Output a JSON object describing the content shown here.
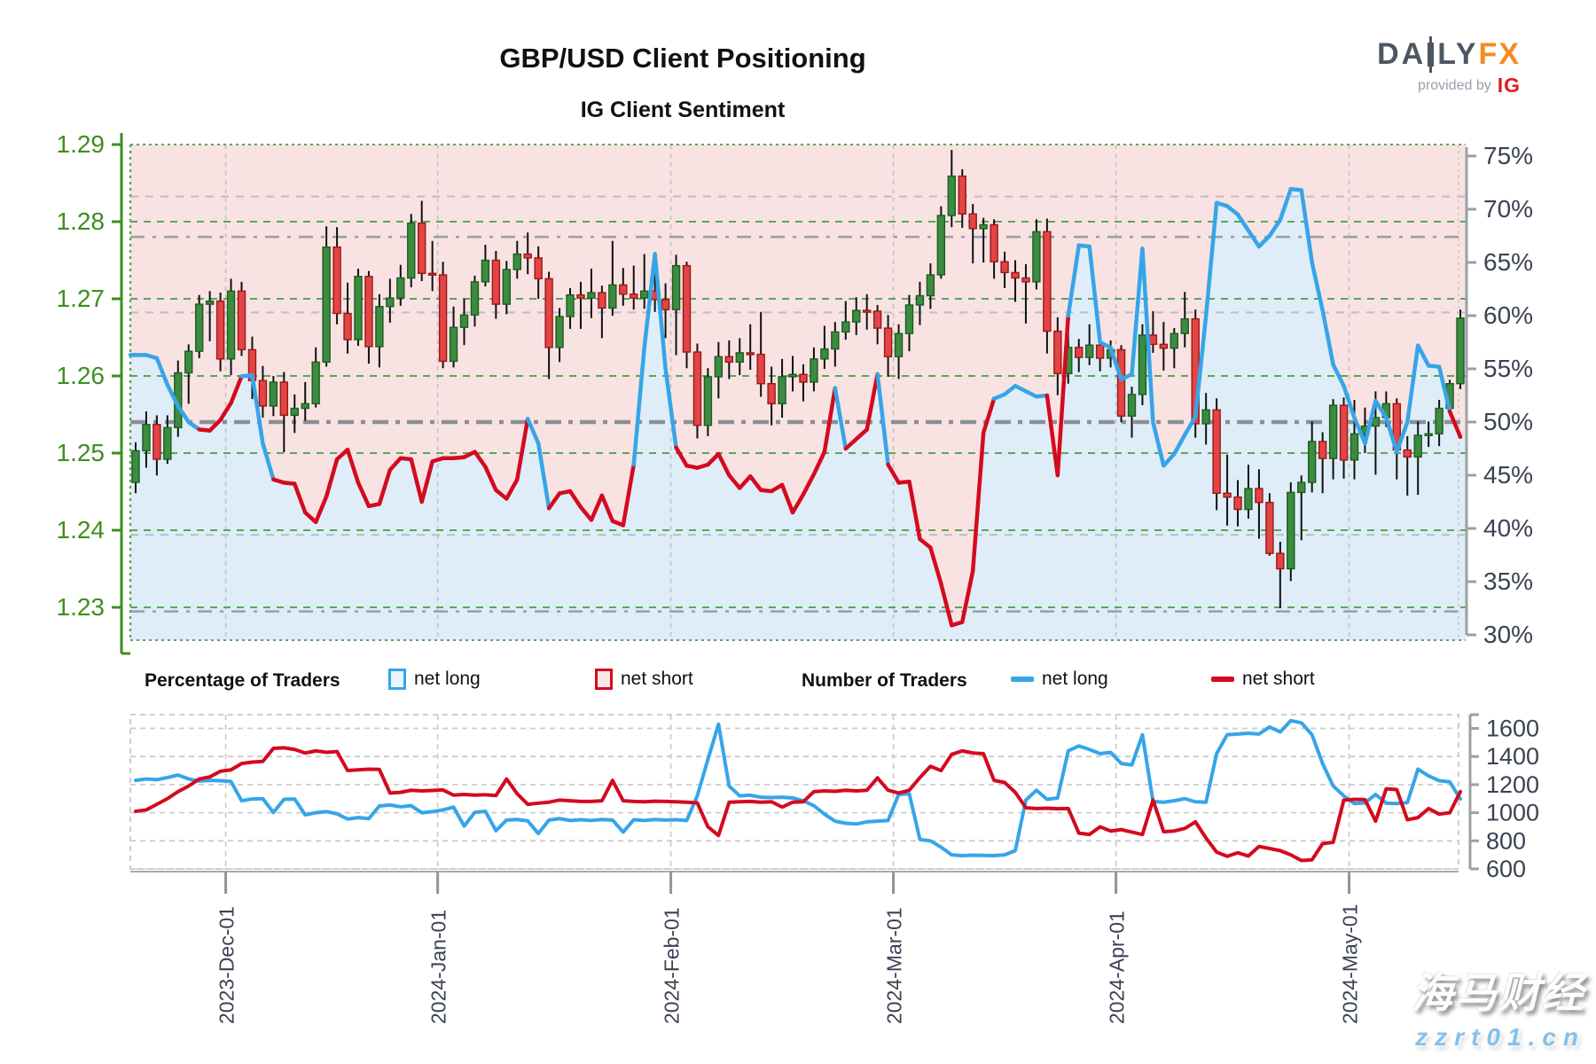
{
  "header": {
    "title": "GBP/USD Client Positioning",
    "subtitle": "IG Client Sentiment"
  },
  "logo": {
    "part1": "DA",
    "part2": "LY",
    "part3": "FX",
    "provided": "provided by",
    "ig": "IG"
  },
  "legend": {
    "pct_title": "Percentage of Traders",
    "pct_long": "net long",
    "pct_short": "net short",
    "num_title": "Number of Traders",
    "num_long": "net long",
    "num_short": "net short"
  },
  "watermark": {
    "line1": "海马财经",
    "line2": "zzrt01.cn"
  },
  "colors": {
    "net_long_blue": "#36a5e8",
    "net_short_red": "#d40a1f",
    "fill_pink": "#f9e2e2",
    "fill_blue": "#deedf8",
    "candle_green": "#3d8b40",
    "candle_green_edge": "#1b5e20",
    "candle_red": "#e24545",
    "candle_red_edge": "#9e1616",
    "axis_green": "#3e8e1e",
    "grid_green": "#5aa755",
    "axis_slate": "#3b4252",
    "grid_gray": "#b9bec6",
    "ref_gray": "#8a8f98"
  },
  "chart_data": {
    "type": "candlestick+line",
    "title": "GBP/USD Client Positioning",
    "subtitle": "IG Client Sentiment",
    "x_range": [
      "2023-Nov-20",
      "2024-May-15"
    ],
    "n_points": 126,
    "month_ticks": {
      "indices": [
        9,
        29,
        51,
        72,
        93,
        115
      ],
      "labels": [
        "2023-Dec-01",
        "2024-Jan-01",
        "2024-Feb-01",
        "2024-Mar-01",
        "2024-Apr-01",
        "2024-May-01"
      ]
    },
    "price_axis": {
      "min": 1.23,
      "max": 1.29,
      "tick_labels": [
        "1.29",
        "1.28",
        "1.27",
        "1.26",
        "1.25",
        "1.24",
        "1.23"
      ],
      "tick_values": [
        1.29,
        1.28,
        1.27,
        1.26,
        1.25,
        1.24,
        1.23
      ]
    },
    "pct_axis": {
      "min": 30,
      "max": 75,
      "tick_labels": [
        "75%",
        "70%",
        "65%",
        "60%",
        "55%",
        "50%",
        "45%",
        "40%",
        "35%",
        "30%"
      ],
      "tick_values": [
        75,
        70,
        65,
        60,
        55,
        50,
        45,
        40,
        35,
        30
      ]
    },
    "count_axis": {
      "min": 600,
      "max": 1600,
      "tick_labels": [
        "1600",
        "1400",
        "1200",
        "1000",
        "800",
        "600"
      ],
      "tick_values": [
        1600,
        1400,
        1200,
        1000,
        800,
        600
      ]
    },
    "reference_lines_pct": [
      {
        "value": 71.2,
        "style": "dash-light"
      },
      {
        "value": 67.4,
        "style": "dashdot-med"
      },
      {
        "value": 60.3,
        "style": "dash-light"
      },
      {
        "value": 50.0,
        "style": "dashdot-bold"
      },
      {
        "value": 39.4,
        "style": "dash-light"
      },
      {
        "value": 32.2,
        "style": "dashdot-med"
      }
    ],
    "candles": [
      [
        1.2462,
        1.2514,
        1.2448,
        1.2503
      ],
      [
        1.2503,
        1.2554,
        1.2481,
        1.2537
      ],
      [
        1.2537,
        1.2549,
        1.2471,
        1.2492
      ],
      [
        1.2492,
        1.2549,
        1.2486,
        1.2533
      ],
      [
        1.2533,
        1.262,
        1.2521,
        1.2604
      ],
      [
        1.2604,
        1.2641,
        1.2564,
        1.2632
      ],
      [
        1.2632,
        1.2705,
        1.2623,
        1.2693
      ],
      [
        1.2693,
        1.271,
        1.2645,
        1.2697
      ],
      [
        1.2697,
        1.2708,
        1.2606,
        1.2622
      ],
      [
        1.2622,
        1.2726,
        1.2601,
        1.271
      ],
      [
        1.271,
        1.2722,
        1.2626,
        1.2634
      ],
      [
        1.2634,
        1.2651,
        1.257,
        1.2594
      ],
      [
        1.2594,
        1.2613,
        1.2546,
        1.2561
      ],
      [
        1.2561,
        1.26,
        1.2548,
        1.2592
      ],
      [
        1.2592,
        1.2605,
        1.2501,
        1.2549
      ],
      [
        1.2549,
        1.2576,
        1.2526,
        1.2558
      ],
      [
        1.2558,
        1.2592,
        1.2542,
        1.2564
      ],
      [
        1.2564,
        1.2637,
        1.2559,
        1.2618
      ],
      [
        1.2618,
        1.2794,
        1.2612,
        1.2767
      ],
      [
        1.2767,
        1.2793,
        1.2667,
        1.2681
      ],
      [
        1.2681,
        1.2721,
        1.2629,
        1.2647
      ],
      [
        1.2647,
        1.2739,
        1.2639,
        1.2729
      ],
      [
        1.2729,
        1.2736,
        1.2616,
        1.2638
      ],
      [
        1.2638,
        1.2706,
        1.2611,
        1.269
      ],
      [
        1.269,
        1.2726,
        1.2669,
        1.2701
      ],
      [
        1.2701,
        1.2744,
        1.2691,
        1.2727
      ],
      [
        1.2727,
        1.281,
        1.2715,
        1.2798
      ],
      [
        1.2798,
        1.2827,
        1.2723,
        1.2733
      ],
      [
        1.2733,
        1.2775,
        1.271,
        1.2731
      ],
      [
        1.2731,
        1.2748,
        1.261,
        1.2619
      ],
      [
        1.2619,
        1.269,
        1.2611,
        1.2663
      ],
      [
        1.2663,
        1.27,
        1.264,
        1.2679
      ],
      [
        1.2679,
        1.273,
        1.2664,
        1.2722
      ],
      [
        1.2722,
        1.277,
        1.2716,
        1.275
      ],
      [
        1.275,
        1.2762,
        1.2674,
        1.2693
      ],
      [
        1.2693,
        1.2749,
        1.268,
        1.2738
      ],
      [
        1.2738,
        1.2775,
        1.2726,
        1.2758
      ],
      [
        1.2758,
        1.2786,
        1.2732,
        1.2753
      ],
      [
        1.2753,
        1.2768,
        1.27,
        1.2726
      ],
      [
        1.2726,
        1.2735,
        1.2596,
        1.2637
      ],
      [
        1.2637,
        1.2688,
        1.2618,
        1.2677
      ],
      [
        1.2677,
        1.2714,
        1.2661,
        1.2705
      ],
      [
        1.2705,
        1.2722,
        1.2661,
        1.2701
      ],
      [
        1.2701,
        1.2739,
        1.2675,
        1.2708
      ],
      [
        1.2708,
        1.2717,
        1.2649,
        1.2688
      ],
      [
        1.2688,
        1.2775,
        1.2678,
        1.2718
      ],
      [
        1.2718,
        1.274,
        1.2691,
        1.2706
      ],
      [
        1.2706,
        1.2743,
        1.2686,
        1.2701
      ],
      [
        1.2701,
        1.2758,
        1.2687,
        1.271
      ],
      [
        1.271,
        1.2749,
        1.2683,
        1.2699
      ],
      [
        1.2699,
        1.272,
        1.2649,
        1.2686
      ],
      [
        1.2686,
        1.2757,
        1.2627,
        1.2743
      ],
      [
        1.2743,
        1.2748,
        1.261,
        1.2631
      ],
      [
        1.2631,
        1.2642,
        1.2519,
        1.2536
      ],
      [
        1.2536,
        1.261,
        1.2522,
        1.2599
      ],
      [
        1.2599,
        1.2644,
        1.2571,
        1.2625
      ],
      [
        1.2625,
        1.2646,
        1.2596,
        1.2618
      ],
      [
        1.2618,
        1.2649,
        1.2601,
        1.263
      ],
      [
        1.263,
        1.2667,
        1.2608,
        1.2628
      ],
      [
        1.2628,
        1.2683,
        1.2573,
        1.259
      ],
      [
        1.259,
        1.2612,
        1.2536,
        1.2564
      ],
      [
        1.2564,
        1.2622,
        1.2546,
        1.2599
      ],
      [
        1.2599,
        1.2626,
        1.258,
        1.2602
      ],
      [
        1.2602,
        1.2615,
        1.2567,
        1.2592
      ],
      [
        1.2592,
        1.2637,
        1.258,
        1.2622
      ],
      [
        1.2622,
        1.2665,
        1.2609,
        1.2635
      ],
      [
        1.2635,
        1.267,
        1.2612,
        1.2657
      ],
      [
        1.2657,
        1.2697,
        1.2647,
        1.267
      ],
      [
        1.267,
        1.2702,
        1.2653,
        1.2685
      ],
      [
        1.2685,
        1.2706,
        1.266,
        1.2684
      ],
      [
        1.2684,
        1.2692,
        1.2641,
        1.2662
      ],
      [
        1.2662,
        1.2679,
        1.2599,
        1.2625
      ],
      [
        1.2625,
        1.2667,
        1.2596,
        1.2655
      ],
      [
        1.2655,
        1.2705,
        1.2632,
        1.2692
      ],
      [
        1.2692,
        1.2722,
        1.2666,
        1.2704
      ],
      [
        1.2704,
        1.2746,
        1.2687,
        1.2731
      ],
      [
        1.2731,
        1.282,
        1.2726,
        1.2808
      ],
      [
        1.2808,
        1.2893,
        1.2793,
        1.2859
      ],
      [
        1.2859,
        1.2868,
        1.2792,
        1.281
      ],
      [
        1.281,
        1.2823,
        1.2746,
        1.2791
      ],
      [
        1.2791,
        1.2805,
        1.2747,
        1.2796
      ],
      [
        1.2796,
        1.2803,
        1.2726,
        1.2748
      ],
      [
        1.2748,
        1.2761,
        1.2714,
        1.2734
      ],
      [
        1.2734,
        1.275,
        1.2696,
        1.2727
      ],
      [
        1.2727,
        1.2745,
        1.2668,
        1.2722
      ],
      [
        1.2722,
        1.2803,
        1.2712,
        1.2787
      ],
      [
        1.2787,
        1.2804,
        1.2629,
        1.2658
      ],
      [
        1.2658,
        1.2676,
        1.2575,
        1.2603
      ],
      [
        1.2603,
        1.2654,
        1.259,
        1.2637
      ],
      [
        1.2637,
        1.2648,
        1.2605,
        1.2624
      ],
      [
        1.2624,
        1.2667,
        1.2614,
        1.264
      ],
      [
        1.264,
        1.2652,
        1.2606,
        1.2623
      ],
      [
        1.2623,
        1.2646,
        1.2611,
        1.2634
      ],
      [
        1.2634,
        1.264,
        1.254,
        1.2548
      ],
      [
        1.2548,
        1.2586,
        1.252,
        1.2576
      ],
      [
        1.2576,
        1.2667,
        1.2562,
        1.2653
      ],
      [
        1.2653,
        1.2684,
        1.263,
        1.2641
      ],
      [
        1.2641,
        1.267,
        1.2607,
        1.2636
      ],
      [
        1.2636,
        1.2662,
        1.261,
        1.2655
      ],
      [
        1.2655,
        1.2709,
        1.2637,
        1.2674
      ],
      [
        1.2674,
        1.2686,
        1.252,
        1.2538
      ],
      [
        1.2538,
        1.2578,
        1.2511,
        1.2556
      ],
      [
        1.2556,
        1.2571,
        1.2426,
        1.2448
      ],
      [
        1.2448,
        1.2498,
        1.2406,
        1.2443
      ],
      [
        1.2443,
        1.2465,
        1.2405,
        1.2427
      ],
      [
        1.2427,
        1.2485,
        1.2415,
        1.2454
      ],
      [
        1.2454,
        1.2479,
        1.2389,
        1.2436
      ],
      [
        1.2436,
        1.2448,
        1.2367,
        1.237
      ],
      [
        1.237,
        1.2385,
        1.2299,
        1.235
      ],
      [
        1.235,
        1.2462,
        1.2334,
        1.2449
      ],
      [
        1.2449,
        1.2471,
        1.2387,
        1.2462
      ],
      [
        1.2462,
        1.2541,
        1.2449,
        1.2515
      ],
      [
        1.2515,
        1.2527,
        1.2448,
        1.2493
      ],
      [
        1.2493,
        1.257,
        1.2466,
        1.2562
      ],
      [
        1.2562,
        1.2572,
        1.2467,
        1.2491
      ],
      [
        1.2491,
        1.2569,
        1.2466,
        1.2525
      ],
      [
        1.2525,
        1.2559,
        1.25,
        1.2535
      ],
      [
        1.2535,
        1.258,
        1.2472,
        1.2546
      ],
      [
        1.2546,
        1.258,
        1.2534,
        1.2564
      ],
      [
        1.2564,
        1.2571,
        1.2466,
        1.2504
      ],
      [
        1.2504,
        1.2522,
        1.2445,
        1.2495
      ],
      [
        1.2495,
        1.2541,
        1.2446,
        1.2523
      ],
      [
        1.2523,
        1.2541,
        1.2508,
        1.2525
      ],
      [
        1.2525,
        1.2569,
        1.2509,
        1.2558
      ],
      [
        1.2558,
        1.2595,
        1.2552,
        1.259
      ],
      [
        1.259,
        1.2686,
        1.2583,
        1.2675
      ]
    ],
    "sentiment_pct": {
      "values": [
        56.3,
        56.3,
        56.0,
        53.5,
        51.5,
        50.0,
        49.3,
        49.2,
        50.2,
        51.8,
        54.3,
        54.4,
        48.0,
        44.6,
        44.3,
        44.2,
        41.5,
        40.6,
        43.0,
        46.5,
        47.4,
        44.3,
        42.1,
        42.3,
        45.5,
        46.6,
        46.5,
        42.5,
        46.3,
        46.6,
        46.6,
        46.7,
        47.2,
        45.8,
        43.6,
        42.8,
        44.6,
        50.3,
        48.0,
        41.9,
        43.3,
        43.5,
        42.0,
        40.8,
        43.1,
        40.7,
        40.3,
        46.0,
        57.0,
        65.8,
        55.0,
        47.6,
        45.9,
        45.7,
        46.0,
        47.0,
        45.0,
        43.8,
        44.9,
        43.6,
        43.5,
        44.1,
        41.5,
        43.2,
        45.1,
        47.2,
        53.2,
        47.5,
        48.4,
        49.3,
        54.5,
        46.0,
        44.3,
        44.4,
        39.0,
        38.2,
        34.8,
        30.9,
        31.2,
        36.0,
        49.0,
        52.2,
        52.6,
        53.4,
        52.9,
        52.4,
        52.5,
        45.0,
        60.0,
        66.6,
        66.5,
        57.5,
        57.0,
        54.0,
        54.5,
        66.3,
        50.0,
        45.9,
        47.0,
        48.8,
        50.5,
        60.0,
        70.6,
        70.3,
        69.5,
        68.0,
        66.5,
        67.5,
        69.0,
        71.9,
        71.8,
        65.0,
        60.5,
        55.4,
        53.4,
        50.4,
        48.0,
        52.0,
        50.4,
        47.2,
        50.0,
        57.2,
        55.3,
        55.2,
        51.0,
        48.6
      ],
      "segment_colors": "bbbbbbbrrrrbbbrrrrrrrrrrrrrrrrrrrrrrrrbbrrrrrrrrbbbbrrrrrrrrrrrrrrrbrrrbrrrrrrrrrrbbbbbrrbbbbbbbbbbbbbbbbbbbbbbbbbbbbbbbbbbbbr"
    },
    "traders_count": {
      "net_long": [
        1230,
        1240,
        1235,
        1250,
        1268,
        1240,
        1225,
        1230,
        1228,
        1222,
        1085,
        1098,
        1100,
        1002,
        1095,
        1098,
        985,
        1000,
        1008,
        992,
        955,
        965,
        958,
        1048,
        1055,
        1042,
        1050,
        1000,
        1008,
        1020,
        1040,
        905,
        1002,
        1010,
        872,
        948,
        952,
        942,
        852,
        948,
        958,
        945,
        950,
        945,
        952,
        948,
        862,
        950,
        945,
        952,
        948,
        950,
        945,
        1120,
        1380,
        1630,
        1190,
        1120,
        1125,
        1110,
        1108,
        1110,
        1105,
        1085,
        1050,
        990,
        940,
        925,
        920,
        935,
        940,
        945,
        1130,
        1135,
        810,
        800,
        755,
        700,
        695,
        698,
        696,
        695,
        700,
        730,
        1090,
        1160,
        1095,
        1105,
        1440,
        1475,
        1450,
        1420,
        1430,
        1350,
        1340,
        1555,
        1080,
        1075,
        1085,
        1100,
        1078,
        1075,
        1420,
        1555,
        1560,
        1565,
        1560,
        1610,
        1575,
        1655,
        1640,
        1555,
        1350,
        1190,
        1120,
        1065,
        1070,
        1130,
        1068,
        1065,
        1072,
        1310,
        1262,
        1228,
        1220,
        1098
      ],
      "net_short": [
        1010,
        1020,
        1060,
        1100,
        1150,
        1190,
        1240,
        1255,
        1295,
        1305,
        1350,
        1360,
        1365,
        1458,
        1462,
        1450,
        1425,
        1440,
        1430,
        1435,
        1300,
        1305,
        1310,
        1308,
        1140,
        1145,
        1160,
        1155,
        1158,
        1162,
        1125,
        1130,
        1125,
        1128,
        1122,
        1240,
        1135,
        1060,
        1068,
        1075,
        1090,
        1085,
        1080,
        1080,
        1085,
        1230,
        1085,
        1080,
        1078,
        1082,
        1080,
        1078,
        1075,
        1070,
        900,
        838,
        1075,
        1078,
        1080,
        1075,
        1078,
        1040,
        1075,
        1078,
        1150,
        1155,
        1152,
        1160,
        1155,
        1160,
        1248,
        1160,
        1140,
        1160,
        1250,
        1330,
        1300,
        1415,
        1440,
        1425,
        1420,
        1230,
        1215,
        1145,
        1035,
        1030,
        1032,
        1028,
        1030,
        855,
        845,
        900,
        870,
        880,
        862,
        845,
        1090,
        865,
        870,
        888,
        935,
        820,
        720,
        690,
        715,
        692,
        760,
        745,
        730,
        700,
        660,
        665,
        780,
        790,
        1090,
        1095,
        1093,
        940,
        1170,
        1165,
        950,
        965,
        1030,
        990,
        1000,
        1150
      ]
    }
  }
}
